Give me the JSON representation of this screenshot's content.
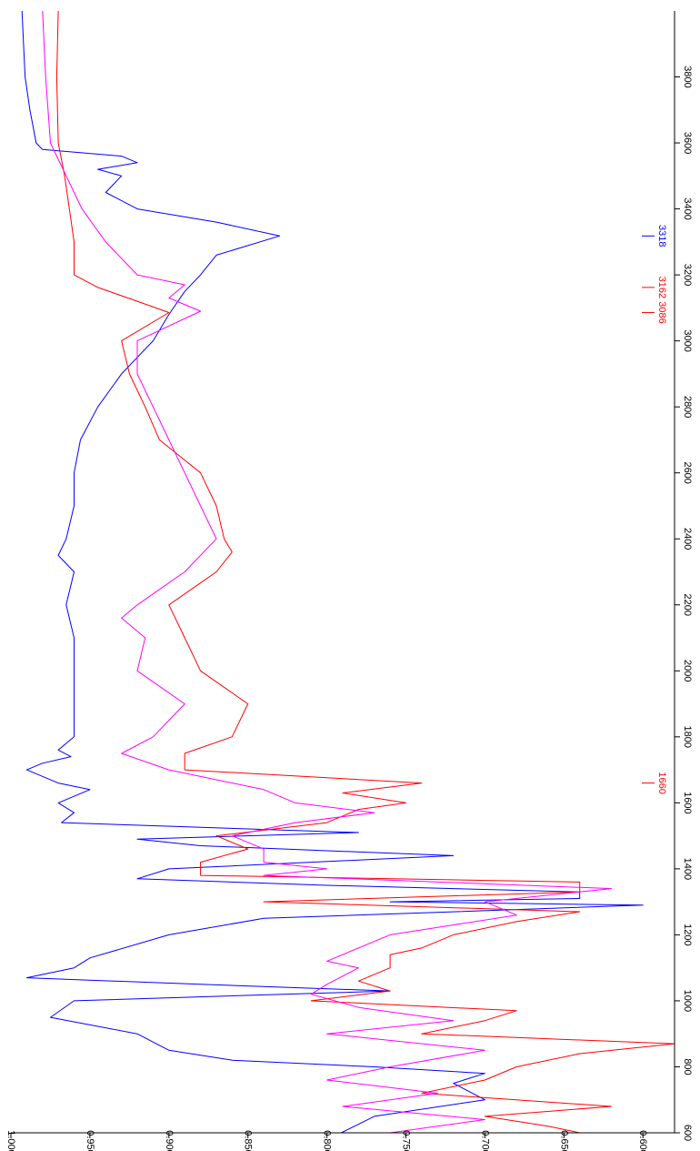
{
  "chart_data": {
    "type": "line",
    "orientation": "rotated-90-clockwise",
    "x": {
      "label": "",
      "range": [
        4000,
        600
      ],
      "ticks": [
        600,
        800,
        1000,
        1200,
        1400,
        1600,
        1800,
        2000,
        2200,
        2400,
        2600,
        2800,
        3000,
        3200,
        3400,
        3600,
        3800
      ],
      "tick_labels": [
        "600",
        "800",
        "1000",
        "1200",
        "1400",
        "1600",
        "1800",
        "2000",
        "2200",
        "2400",
        "2600",
        "2800",
        "3000",
        "3200",
        "3400",
        "3600",
        "3800"
      ]
    },
    "y": {
      "label": "",
      "range": [
        1.0,
        0.58
      ],
      "ticks": [
        1.0,
        0.95,
        0.9,
        0.85,
        0.8,
        0.75,
        0.7,
        0.65,
        0.6
      ],
      "tick_labels": [
        "1.000",
        "0.950",
        "0.900",
        "0.850",
        "0.800",
        "0.750",
        "0.700",
        "0.650",
        "0.600"
      ]
    },
    "grid": false,
    "series": [
      {
        "color": "#0000ff",
        "points": [
          [
            600,
            0.791
          ],
          [
            650,
            0.77
          ],
          [
            700,
            0.7
          ],
          [
            750,
            0.72
          ],
          [
            780,
            0.7
          ],
          [
            800,
            0.77
          ],
          [
            820,
            0.86
          ],
          [
            850,
            0.9
          ],
          [
            900,
            0.92
          ],
          [
            950,
            0.975
          ],
          [
            1000,
            0.96
          ],
          [
            1030,
            0.76
          ],
          [
            1050,
            0.88
          ],
          [
            1070,
            0.99
          ],
          [
            1100,
            0.96
          ],
          [
            1130,
            0.95
          ],
          [
            1200,
            0.9
          ],
          [
            1250,
            0.84
          ],
          [
            1290,
            0.6
          ],
          [
            1300,
            0.76
          ],
          [
            1310,
            0.64
          ],
          [
            1330,
            0.64
          ],
          [
            1350,
            0.8
          ],
          [
            1370,
            0.92
          ],
          [
            1400,
            0.9
          ],
          [
            1440,
            0.72
          ],
          [
            1470,
            0.88
          ],
          [
            1490,
            0.92
          ],
          [
            1510,
            0.78
          ],
          [
            1540,
            0.968
          ],
          [
            1570,
            0.96
          ],
          [
            1600,
            0.97
          ],
          [
            1640,
            0.95
          ],
          [
            1660,
            0.97
          ],
          [
            1700,
            0.99
          ],
          [
            1720,
            0.98
          ],
          [
            1740,
            0.962
          ],
          [
            1760,
            0.97
          ],
          [
            1800,
            0.96
          ],
          [
            1900,
            0.96
          ],
          [
            2000,
            0.96
          ],
          [
            2100,
            0.96
          ],
          [
            2200,
            0.965
          ],
          [
            2300,
            0.96
          ],
          [
            2350,
            0.97
          ],
          [
            2400,
            0.965
          ],
          [
            2500,
            0.96
          ],
          [
            2600,
            0.96
          ],
          [
            2700,
            0.956
          ],
          [
            2800,
            0.945
          ],
          [
            2900,
            0.93
          ],
          [
            3000,
            0.91
          ],
          [
            3080,
            0.9
          ],
          [
            3150,
            0.89
          ],
          [
            3200,
            0.88
          ],
          [
            3260,
            0.87
          ],
          [
            3318,
            0.83
          ],
          [
            3360,
            0.87
          ],
          [
            3400,
            0.92
          ],
          [
            3450,
            0.94
          ],
          [
            3500,
            0.93
          ],
          [
            3520,
            0.945
          ],
          [
            3540,
            0.92
          ],
          [
            3560,
            0.93
          ],
          [
            3580,
            0.98
          ],
          [
            3600,
            0.984
          ],
          [
            3700,
            0.988
          ],
          [
            3800,
            0.991
          ],
          [
            3900,
            0.992
          ],
          [
            4000,
            0.993
          ]
        ]
      },
      {
        "color": "#ff0000",
        "points": [
          [
            600,
            0.64
          ],
          [
            620,
            0.66
          ],
          [
            650,
            0.7
          ],
          [
            680,
            0.62
          ],
          [
            720,
            0.74
          ],
          [
            760,
            0.7
          ],
          [
            800,
            0.68
          ],
          [
            840,
            0.64
          ],
          [
            870,
            0.58
          ],
          [
            900,
            0.74
          ],
          [
            940,
            0.7
          ],
          [
            970,
            0.68
          ],
          [
            1000,
            0.81
          ],
          [
            1030,
            0.76
          ],
          [
            1060,
            0.78
          ],
          [
            1100,
            0.76
          ],
          [
            1140,
            0.76
          ],
          [
            1160,
            0.74
          ],
          [
            1200,
            0.72
          ],
          [
            1240,
            0.68
          ],
          [
            1270,
            0.64
          ],
          [
            1300,
            0.84
          ],
          [
            1330,
            0.64
          ],
          [
            1360,
            0.64
          ],
          [
            1380,
            0.88
          ],
          [
            1420,
            0.88
          ],
          [
            1460,
            0.85
          ],
          [
            1500,
            0.87
          ],
          [
            1540,
            0.8
          ],
          [
            1580,
            0.78
          ],
          [
            1600,
            0.75
          ],
          [
            1630,
            0.79
          ],
          [
            1660,
            0.74
          ],
          [
            1700,
            0.89
          ],
          [
            1750,
            0.89
          ],
          [
            1800,
            0.86
          ],
          [
            1900,
            0.85
          ],
          [
            2000,
            0.88
          ],
          [
            2100,
            0.89
          ],
          [
            2200,
            0.9
          ],
          [
            2300,
            0.87
          ],
          [
            2360,
            0.86
          ],
          [
            2400,
            0.865
          ],
          [
            2500,
            0.87
          ],
          [
            2600,
            0.88
          ],
          [
            2700,
            0.906
          ],
          [
            2800,
            0.915
          ],
          [
            2900,
            0.925
          ],
          [
            3000,
            0.93
          ],
          [
            3086,
            0.9
          ],
          [
            3120,
            0.92
          ],
          [
            3162,
            0.945
          ],
          [
            3200,
            0.96
          ],
          [
            3300,
            0.96
          ],
          [
            3400,
            0.963
          ],
          [
            3500,
            0.966
          ],
          [
            3600,
            0.97
          ],
          [
            3800,
            0.971
          ],
          [
            4000,
            0.97
          ]
        ]
      },
      {
        "color": "#ff00ff",
        "points": [
          [
            600,
            0.76
          ],
          [
            640,
            0.7
          ],
          [
            680,
            0.79
          ],
          [
            720,
            0.73
          ],
          [
            760,
            0.8
          ],
          [
            800,
            0.76
          ],
          [
            850,
            0.7
          ],
          [
            900,
            0.8
          ],
          [
            940,
            0.72
          ],
          [
            980,
            0.78
          ],
          [
            1020,
            0.81
          ],
          [
            1050,
            0.8
          ],
          [
            1100,
            0.78
          ],
          [
            1120,
            0.8
          ],
          [
            1200,
            0.76
          ],
          [
            1260,
            0.68
          ],
          [
            1300,
            0.7
          ],
          [
            1340,
            0.62
          ],
          [
            1380,
            0.84
          ],
          [
            1400,
            0.8
          ],
          [
            1420,
            0.84
          ],
          [
            1460,
            0.84
          ],
          [
            1500,
            0.86
          ],
          [
            1540,
            0.82
          ],
          [
            1570,
            0.77
          ],
          [
            1600,
            0.82
          ],
          [
            1640,
            0.84
          ],
          [
            1700,
            0.9
          ],
          [
            1750,
            0.93
          ],
          [
            1800,
            0.91
          ],
          [
            1900,
            0.89
          ],
          [
            2000,
            0.92
          ],
          [
            2100,
            0.915
          ],
          [
            2160,
            0.93
          ],
          [
            2200,
            0.92
          ],
          [
            2300,
            0.89
          ],
          [
            2400,
            0.87
          ],
          [
            2500,
            0.88
          ],
          [
            2600,
            0.89
          ],
          [
            2700,
            0.9
          ],
          [
            2800,
            0.91
          ],
          [
            2900,
            0.92
          ],
          [
            3000,
            0.92
          ],
          [
            3090,
            0.88
          ],
          [
            3130,
            0.9
          ],
          [
            3170,
            0.89
          ],
          [
            3200,
            0.92
          ],
          [
            3300,
            0.94
          ],
          [
            3400,
            0.955
          ],
          [
            3500,
            0.965
          ],
          [
            3600,
            0.975
          ],
          [
            3800,
            0.978
          ],
          [
            4000,
            0.98
          ]
        ]
      }
    ],
    "annotations": [
      {
        "text": "1660",
        "x": 1660,
        "color": "#ff0000"
      },
      {
        "text": "3086",
        "x": 3086,
        "color": "#ff0000"
      },
      {
        "text": "3162",
        "x": 3162,
        "color": "#ff0000"
      },
      {
        "text": "3318",
        "x": 3318,
        "color": "#0000ff"
      }
    ]
  }
}
